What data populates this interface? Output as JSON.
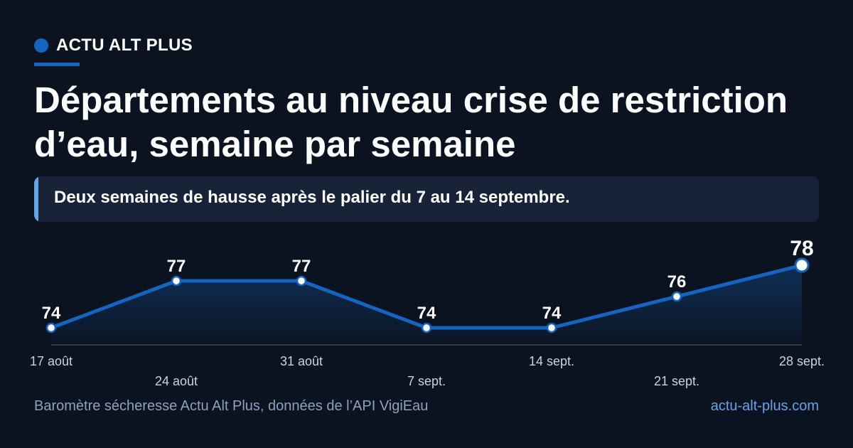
{
  "brand": {
    "name": "ACTU ALT PLUS"
  },
  "title": "Départements au niveau crise de restriction d’eau, semaine par semaine",
  "callout": "Deux semaines de hausse après le palier du 7 au 14 septembre.",
  "footer": {
    "source": "Baromètre sécheresse Actu Alt Plus, données de l’API VigiEau",
    "site": "actu-alt-plus.com"
  },
  "colors": {
    "background": "#0b1220",
    "accent": "#1565c0",
    "callout_bg": "#182338",
    "callout_bar": "#64a5e8",
    "footer_text": "#8ea1bd",
    "link": "#64a5e8"
  },
  "chart_data": {
    "type": "line",
    "categories": [
      "17 août",
      "24 août",
      "31 août",
      "7 sept.",
      "14 sept.",
      "21 sept.",
      "28 sept."
    ],
    "values": [
      74,
      77,
      77,
      74,
      74,
      76,
      78
    ],
    "data_labels": [
      "74",
      "77",
      "77",
      "74",
      "74",
      "76",
      "78"
    ],
    "ylim": [
      73.5,
      78
    ],
    "area_fill": true,
    "grid": false,
    "last_point_highlighted": true
  }
}
